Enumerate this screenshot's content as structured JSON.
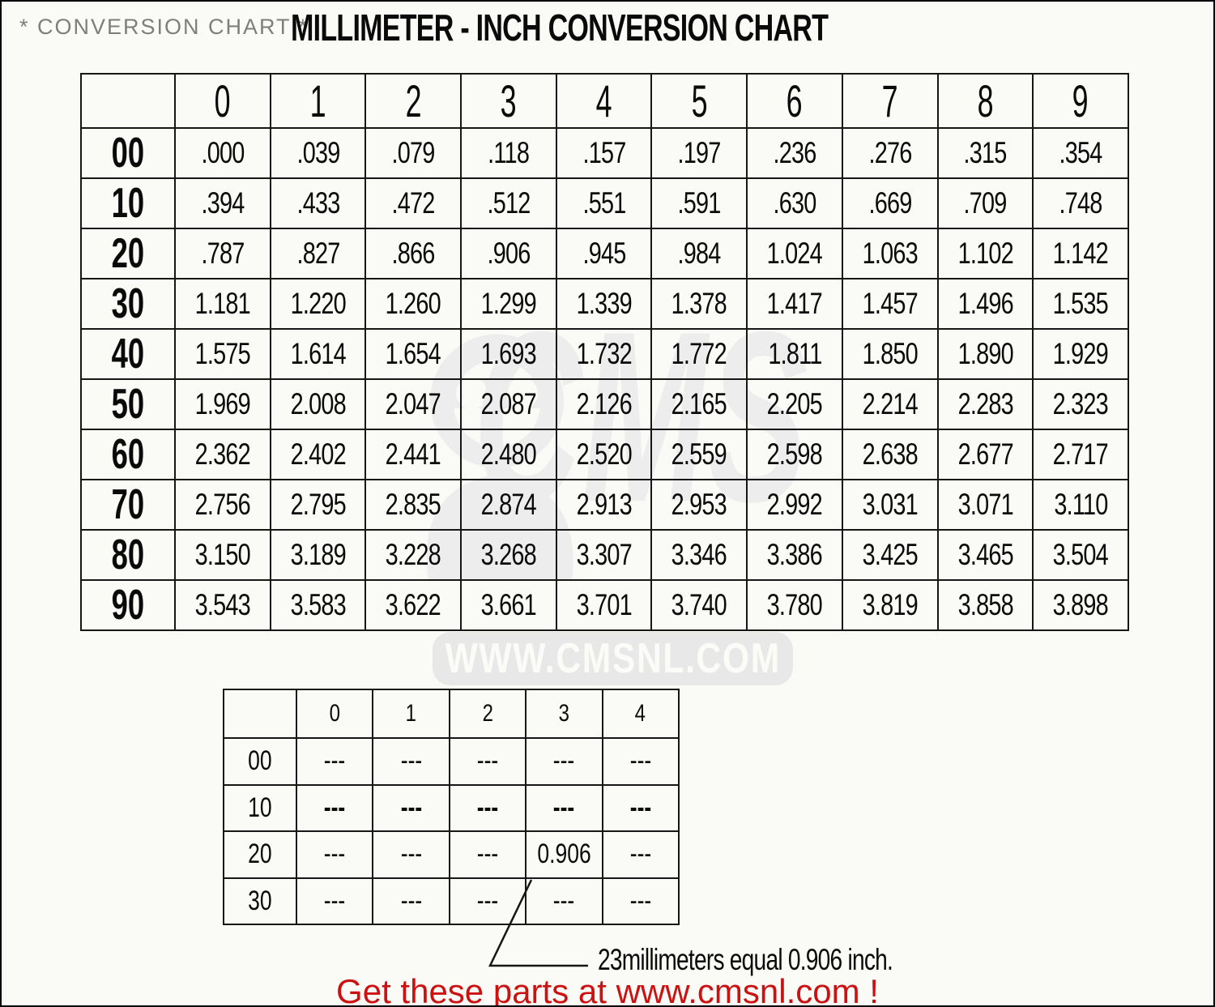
{
  "header": {
    "pretitle": "* CONVERSION CHART *",
    "title": "MILLIMETER - INCH CONVERSION CHART"
  },
  "watermark": {
    "logo_text": "CMS",
    "site_text": "WWW.CMSNL.COM",
    "mascot_icon": "cms-mascot-icon"
  },
  "chart_data": [
    {
      "type": "table",
      "title": "MILLIMETER - INCH CONVERSION CHART",
      "description": "Millimeters (row label + column header) to inches (cell value)",
      "col_headers": [
        "0",
        "1",
        "2",
        "3",
        "4",
        "5",
        "6",
        "7",
        "8",
        "9"
      ],
      "rows": [
        {
          "label": "00",
          "values": [
            ".000",
            ".039",
            ".079",
            ".118",
            ".157",
            ".197",
            ".236",
            ".276",
            ".315",
            ".354"
          ]
        },
        {
          "label": "10",
          "values": [
            ".394",
            ".433",
            ".472",
            ".512",
            ".551",
            ".591",
            ".630",
            ".669",
            ".709",
            ".748"
          ]
        },
        {
          "label": "20",
          "values": [
            ".787",
            ".827",
            ".866",
            ".906",
            ".945",
            ".984",
            "1.024",
            "1.063",
            "1.102",
            "1.142"
          ]
        },
        {
          "label": "30",
          "values": [
            "1.181",
            "1.220",
            "1.260",
            "1.299",
            "1.339",
            "1.378",
            "1.417",
            "1.457",
            "1.496",
            "1.535"
          ]
        },
        {
          "label": "40",
          "values": [
            "1.575",
            "1.614",
            "1.654",
            "1.693",
            "1.732",
            "1.772",
            "1.811",
            "1.850",
            "1.890",
            "1.929"
          ]
        },
        {
          "label": "50",
          "values": [
            "1.969",
            "2.008",
            "2.047",
            "2.087",
            "2.126",
            "2.165",
            "2.205",
            "2.214",
            "2.283",
            "2.323"
          ]
        },
        {
          "label": "60",
          "values": [
            "2.362",
            "2.402",
            "2.441",
            "2.480",
            "2.520",
            "2.559",
            "2.598",
            "2.638",
            "2.677",
            "2.717"
          ]
        },
        {
          "label": "70",
          "values": [
            "2.756",
            "2.795",
            "2.835",
            "2.874",
            "2.913",
            "2.953",
            "2.992",
            "3.031",
            "3.071",
            "3.110"
          ]
        },
        {
          "label": "80",
          "values": [
            "3.150",
            "3.189",
            "3.228",
            "3.268",
            "3.307",
            "3.346",
            "3.386",
            "3.425",
            "3.465",
            "3.504"
          ]
        },
        {
          "label": "90",
          "values": [
            "3.543",
            "3.583",
            "3.622",
            "3.661",
            "3.701",
            "3.740",
            "3.780",
            "3.819",
            "3.858",
            "3.898"
          ]
        }
      ]
    },
    {
      "type": "table",
      "title": "Example lookup table",
      "col_headers": [
        "0",
        "1",
        "2",
        "3",
        "4"
      ],
      "rows": [
        {
          "label": "00",
          "values": [
            "---",
            "---",
            "---",
            "---",
            "---"
          ]
        },
        {
          "label": "10",
          "values": [
            "---",
            "---",
            "---",
            "---",
            "---"
          ],
          "bold": true
        },
        {
          "label": "20",
          "values": [
            "---",
            "---",
            "---",
            "0.906",
            "---"
          ]
        },
        {
          "label": "30",
          "values": [
            "---",
            "---",
            "---",
            "---",
            "---"
          ]
        }
      ],
      "highlight_cell": {
        "row": "20",
        "col": "3",
        "value": "0.906"
      },
      "annotation": "23millimeters equal 0.906 inch."
    }
  ],
  "footer": {
    "text": "Get these parts at www.cmsnl.com !"
  },
  "colors": {
    "accent_red": "#cc1111",
    "pretitle_gray": "#7e7e7e",
    "watermark_gray": "#ededed",
    "band_gray": "#e8e8e8",
    "page_background": "#fafaf6",
    "table_border": "#161616"
  }
}
